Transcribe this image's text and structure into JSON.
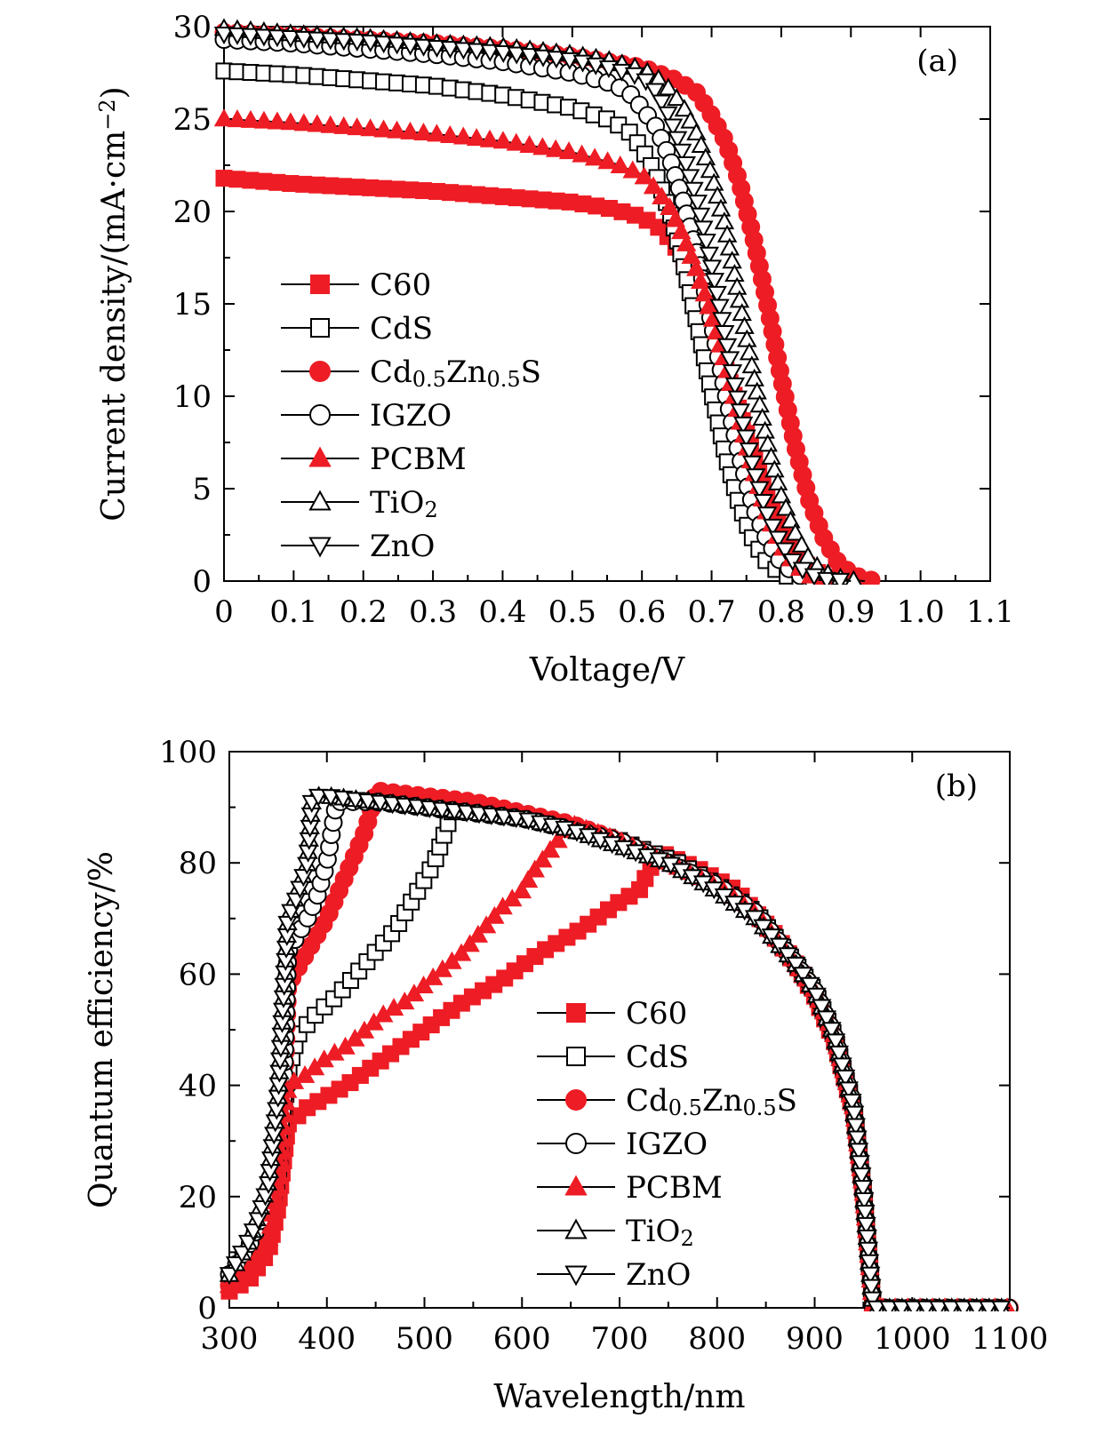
{
  "colors": {
    "red": "#ee1c24",
    "black": "#000000",
    "white": "#ffffff"
  },
  "chart_data": [
    {
      "type": "line",
      "panel_label": "(a)",
      "xlabel": "Voltage/V",
      "ylabel": "Current density/(mA·cm−2)",
      "xlim": [
        0,
        1.1
      ],
      "ylim": [
        0,
        30
      ],
      "x_ticks": [
        "0",
        "0.1",
        "0.2",
        "0.3",
        "0.4",
        "0.5",
        "0.6",
        "0.7",
        "0.8",
        "0.9",
        "1.0",
        "1.1"
      ],
      "y_ticks": [
        "0",
        "5",
        "10",
        "15",
        "20",
        "25",
        "30"
      ],
      "legend_position": "middle-left",
      "series": [
        {
          "name": "C60",
          "marker": "square",
          "fill": "red",
          "x": [
            0,
            0.1,
            0.2,
            0.3,
            0.4,
            0.5,
            0.55,
            0.6,
            0.63,
            0.66,
            0.69,
            0.72,
            0.75,
            0.78,
            0.81,
            0.84,
            0.86,
            0.88,
            0.9
          ],
          "y": [
            21.8,
            21.5,
            21.3,
            21.1,
            20.8,
            20.5,
            20.2,
            19.7,
            19.0,
            17.5,
            15.0,
            11.5,
            8.0,
            4.5,
            2.0,
            0.7,
            0.3,
            0.1,
            0
          ]
        },
        {
          "name": "CdS",
          "marker": "square",
          "fill": "white",
          "x": [
            0,
            0.1,
            0.2,
            0.3,
            0.4,
            0.5,
            0.55,
            0.58,
            0.6,
            0.62,
            0.64,
            0.66,
            0.68,
            0.7,
            0.72,
            0.74,
            0.76,
            0.78,
            0.8,
            0.82,
            0.84
          ],
          "y": [
            27.6,
            27.4,
            27.1,
            26.8,
            26.3,
            25.6,
            25.0,
            24.4,
            23.4,
            22.0,
            20.0,
            17.1,
            13.8,
            10.2,
            6.8,
            4.1,
            2.2,
            1.0,
            0.4,
            0.1,
            0
          ]
        },
        {
          "name": "Cd0.5Zn0.5S",
          "marker": "circle",
          "fill": "red",
          "x": [
            0,
            0.1,
            0.2,
            0.3,
            0.4,
            0.5,
            0.6,
            0.65,
            0.68,
            0.7,
            0.72,
            0.74,
            0.76,
            0.78,
            0.8,
            0.82,
            0.84,
            0.86,
            0.88,
            0.9,
            0.92,
            0.94
          ],
          "y": [
            29.7,
            29.5,
            29.3,
            29.1,
            28.8,
            28.4,
            27.8,
            27.1,
            26.4,
            25.2,
            23.8,
            21.6,
            18.6,
            15.0,
            11.0,
            7.3,
            4.4,
            2.4,
            1.1,
            0.4,
            0.1,
            0
          ]
        },
        {
          "name": "IGZO",
          "marker": "circle",
          "fill": "white",
          "x": [
            0,
            0.1,
            0.2,
            0.3,
            0.4,
            0.5,
            0.55,
            0.58,
            0.6,
            0.62,
            0.64,
            0.66,
            0.68,
            0.7,
            0.72,
            0.74,
            0.76,
            0.78,
            0.8,
            0.82,
            0.84,
            0.86
          ],
          "y": [
            29.3,
            29.1,
            28.8,
            28.5,
            28.1,
            27.5,
            27.0,
            26.5,
            25.6,
            24.6,
            22.9,
            20.5,
            17.6,
            14.0,
            10.2,
            6.8,
            4.0,
            2.2,
            1.0,
            0.4,
            0.1,
            0
          ]
        },
        {
          "name": "PCBM",
          "marker": "triangle-up",
          "fill": "red",
          "x": [
            0,
            0.1,
            0.2,
            0.3,
            0.4,
            0.5,
            0.56,
            0.6,
            0.62,
            0.64,
            0.66,
            0.68,
            0.7,
            0.72,
            0.74,
            0.76,
            0.78,
            0.8,
            0.82,
            0.84,
            0.86,
            0.88
          ],
          "y": [
            25.0,
            24.8,
            24.5,
            24.2,
            23.8,
            23.2,
            22.6,
            22.0,
            21.2,
            20.2,
            18.6,
            16.7,
            14.4,
            11.8,
            8.8,
            6.0,
            3.6,
            1.9,
            0.9,
            0.3,
            0.1,
            0
          ]
        },
        {
          "name": "TiO2",
          "marker": "triangle-up",
          "fill": "white",
          "x": [
            0,
            0.1,
            0.2,
            0.3,
            0.4,
            0.5,
            0.55,
            0.6,
            0.62,
            0.64,
            0.66,
            0.68,
            0.7,
            0.72,
            0.74,
            0.76,
            0.78,
            0.8,
            0.82,
            0.84,
            0.86,
            0.88,
            0.9,
            0.92
          ],
          "y": [
            29.9,
            29.6,
            29.4,
            29.1,
            28.9,
            28.5,
            28.2,
            27.7,
            27.3,
            26.6,
            25.6,
            24.1,
            22.0,
            19.2,
            15.2,
            11.2,
            7.5,
            4.6,
            2.6,
            1.2,
            0.5,
            0.2,
            0.05,
            0
          ]
        },
        {
          "name": "ZnO",
          "marker": "triangle-down",
          "fill": "white",
          "x": [
            0,
            0.1,
            0.2,
            0.3,
            0.4,
            0.5,
            0.55,
            0.6,
            0.62,
            0.64,
            0.66,
            0.68,
            0.7,
            0.72,
            0.74,
            0.76,
            0.78,
            0.8,
            0.82,
            0.84,
            0.86,
            0.88,
            0.9
          ],
          "y": [
            29.6,
            29.4,
            29.2,
            28.9,
            28.6,
            28.2,
            27.8,
            27.3,
            26.5,
            25.1,
            23.0,
            20.5,
            17.1,
            13.2,
            9.4,
            6.1,
            3.6,
            2.0,
            0.9,
            0.4,
            0.1,
            0.05,
            0
          ]
        }
      ]
    },
    {
      "type": "line",
      "panel_label": "(b)",
      "xlabel": "Wavelength/nm",
      "ylabel": "Quantum efficiency/%",
      "xlim": [
        300,
        1100
      ],
      "ylim": [
        0,
        100
      ],
      "x_ticks": [
        "300",
        "400",
        "500",
        "600",
        "700",
        "800",
        "900",
        "1000",
        "1100"
      ],
      "y_ticks": [
        "0",
        "20",
        "40",
        "60",
        "80",
        "100"
      ],
      "legend_position": "bottom-center",
      "series": [
        {
          "name": "C60",
          "marker": "square",
          "fill": "red",
          "x": [
            300,
            320,
            340,
            350,
            360,
            380,
            420,
            460,
            500,
            540,
            580,
            620,
            660,
            700,
            720,
            740,
            780,
            820,
            860,
            880,
            900,
            920,
            940,
            950,
            960,
            1000,
            1050,
            1100
          ],
          "y": [
            3,
            5,
            10,
            18,
            33,
            36,
            40,
            45,
            50,
            55,
            59,
            64,
            68,
            73,
            75,
            82,
            79,
            75,
            67,
            62,
            56,
            48,
            35,
            20,
            0,
            0,
            0,
            0
          ]
        },
        {
          "name": "CdS",
          "marker": "square",
          "fill": "white",
          "x": [
            300,
            320,
            340,
            350,
            360,
            370,
            390,
            410,
            430,
            450,
            470,
            490,
            510,
            530,
            580,
            640,
            700,
            760,
            800,
            840,
            880,
            900,
            920,
            940,
            950,
            960,
            1000,
            1050,
            1100
          ],
          "y": [
            5,
            9,
            16,
            24,
            42,
            49,
            53,
            56,
            60,
            64,
            68,
            74,
            80,
            90,
            89,
            87,
            84,
            80,
            76,
            71,
            62,
            57,
            49,
            36,
            21,
            0,
            0,
            0,
            0
          ]
        },
        {
          "name": "Cd0.5Zn0.5S",
          "marker": "circle",
          "fill": "red",
          "x": [
            300,
            320,
            340,
            350,
            355,
            360,
            370,
            380,
            390,
            400,
            410,
            420,
            430,
            440,
            450,
            500,
            550,
            600,
            650,
            700,
            750,
            800,
            840,
            880,
            900,
            920,
            940,
            950,
            960,
            1000,
            1050,
            1100
          ],
          "y": [
            4,
            7,
            14,
            25,
            33,
            58,
            61,
            64,
            67,
            70,
            74,
            78,
            82,
            86,
            93,
            92,
            91,
            89,
            87,
            84,
            80,
            76,
            71,
            62,
            57,
            49,
            36,
            21,
            0,
            0,
            0,
            0
          ]
        },
        {
          "name": "IGZO",
          "marker": "circle",
          "fill": "white",
          "x": [
            300,
            320,
            340,
            350,
            355,
            360,
            370,
            380,
            390,
            400,
            410,
            450,
            500,
            550,
            600,
            650,
            700,
            750,
            800,
            840,
            880,
            900,
            920,
            940,
            950,
            960,
            1000,
            1050,
            1100
          ],
          "y": [
            6,
            11,
            19,
            30,
            36,
            64,
            67,
            70,
            74,
            80,
            91,
            91,
            90,
            89,
            88,
            86,
            84,
            80,
            76,
            71,
            62,
            57,
            49,
            36,
            21,
            0,
            0,
            0,
            0
          ]
        },
        {
          "name": "PCBM",
          "marker": "triangle-up",
          "fill": "red",
          "x": [
            300,
            320,
            340,
            350,
            360,
            380,
            400,
            420,
            440,
            460,
            480,
            500,
            520,
            540,
            560,
            580,
            600,
            610,
            650,
            700,
            750,
            800,
            840,
            880,
            900,
            920,
            940,
            950,
            960,
            1000,
            1050,
            1100
          ],
          "y": [
            4,
            7,
            12,
            22,
            40,
            42,
            45,
            47,
            50,
            53,
            55,
            58,
            61,
            64,
            68,
            72,
            75,
            78,
            87,
            84,
            80,
            76,
            71,
            62,
            57,
            49,
            36,
            21,
            0,
            0,
            0,
            0
          ]
        },
        {
          "name": "TiO2",
          "marker": "triangle-up",
          "fill": "white",
          "x": [
            300,
            310,
            320,
            330,
            340,
            350,
            360,
            370,
            380,
            385,
            400,
            450,
            500,
            550,
            600,
            650,
            700,
            750,
            800,
            840,
            880,
            900,
            920,
            940,
            950,
            960,
            1000,
            1050,
            1100
          ],
          "y": [
            6,
            9,
            12,
            17,
            23,
            38,
            70,
            75,
            80,
            92,
            92,
            91,
            90,
            89,
            88,
            86,
            83,
            80,
            75,
            70,
            62,
            57,
            49,
            36,
            21,
            0,
            0,
            0,
            0
          ]
        },
        {
          "name": "ZnO",
          "marker": "triangle-down",
          "fill": "white",
          "x": [
            300,
            310,
            320,
            330,
            340,
            350,
            360,
            370,
            380,
            385,
            400,
            450,
            500,
            550,
            600,
            650,
            700,
            750,
            800,
            840,
            880,
            900,
            920,
            940,
            950,
            960,
            1000,
            1050,
            1100
          ],
          "y": [
            6,
            9,
            12,
            16,
            22,
            38,
            70,
            74,
            80,
            92,
            92,
            91,
            90,
            89,
            88,
            86,
            83,
            80,
            75,
            70,
            62,
            57,
            49,
            36,
            21,
            0,
            0,
            0,
            0
          ]
        }
      ]
    }
  ]
}
